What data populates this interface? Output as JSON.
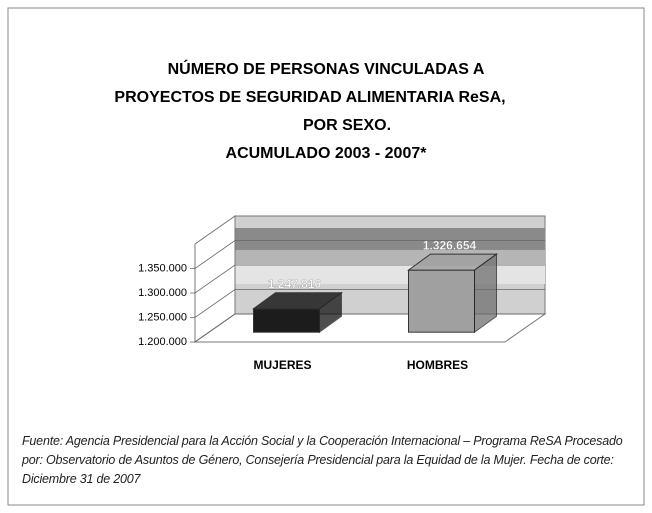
{
  "chart_data": {
    "type": "bar3d",
    "title": [
      "NÚMERO DE PERSONAS VINCULADAS A",
      "PROYECTOS DE SEGURIDAD ALIMENTARIA ReSA,",
      "POR SEXO.",
      "ACUMULADO 2003 - 2007*"
    ],
    "categories": [
      "MUJERES",
      "HOMBRES"
    ],
    "values": [
      1247816,
      1326654
    ],
    "value_labels": [
      "1.247.816",
      "1.326.654"
    ],
    "colors": [
      "#1c1c1c",
      "#a0a0a0"
    ],
    "ylim": [
      1200000,
      1400000
    ],
    "yticks": [
      {
        "value": 1200000,
        "label": "1.200.000"
      },
      {
        "value": 1250000,
        "label": "1.250.000"
      },
      {
        "value": 1300000,
        "label": "1.300.000"
      },
      {
        "value": 1350000,
        "label": "1.350.000"
      }
    ],
    "note": "Fuente: Agencia Presidencial para la Acción Social y la Cooperación Internacional – Programa ReSA Procesado por: Observatorio de Asuntos de Género, Consejería Presidencial para la Equidad de la Mujer. Fecha de corte: Diciembre 31 de 2007"
  }
}
